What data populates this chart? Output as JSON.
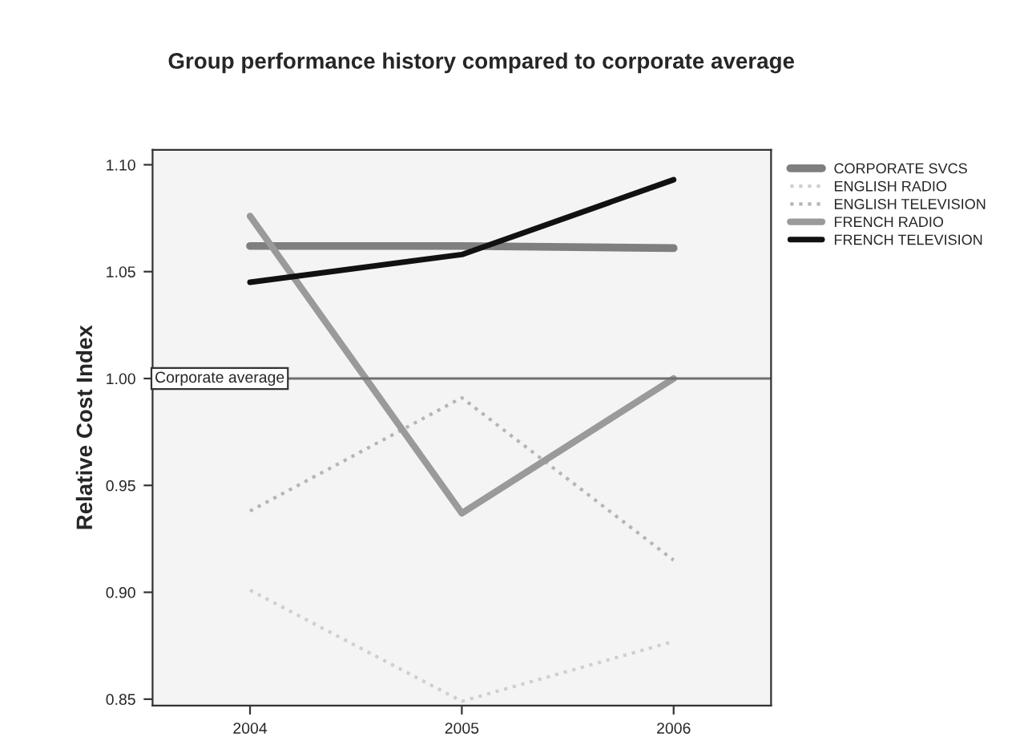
{
  "chart_data": {
    "type": "line",
    "title": "Group performance history compared to corporate average",
    "ylabel": "Relative Cost Index",
    "x": [
      2004,
      2005,
      2006
    ],
    "xlim": [
      2003.54,
      2006.46
    ],
    "xticks": [
      2004,
      2005,
      2006
    ],
    "ylim": [
      0.847,
      1.107
    ],
    "yticks": [
      {
        "value": 0.85,
        "label": "0.85"
      },
      {
        "value": 0.9,
        "label": "0.90"
      },
      {
        "value": 0.95,
        "label": "0.95"
      },
      {
        "value": 1.0,
        "label": "1.00"
      },
      {
        "value": 1.05,
        "label": "1.05"
      },
      {
        "value": 1.1,
        "label": "1.10"
      }
    ],
    "series": [
      {
        "name": "CORPORATE SVCS",
        "color": "#7f7f7f",
        "values": [
          1.062,
          1.062,
          1.061
        ]
      },
      {
        "name": "ENGLISH RADIO",
        "color": "#cfcfcf",
        "line_style": "dotted",
        "values": [
          0.901,
          0.849,
          0.877
        ]
      },
      {
        "name": "ENGLISH TELEVISION",
        "color": "#b5b5b5",
        "line_style": "dotted",
        "values": [
          0.938,
          0.991,
          0.915
        ]
      },
      {
        "name": "FRENCH RADIO",
        "color": "#9a9a9a",
        "values": [
          1.076,
          0.937,
          1.0
        ]
      },
      {
        "name": "FRENCH TELEVISION",
        "color": "#111111",
        "values": [
          1.045,
          1.058,
          1.093
        ]
      }
    ],
    "ref_lines": [
      {
        "axis": "y",
        "value": 1.0,
        "label": "Corporate average",
        "color": "#707070"
      }
    ],
    "grid": false,
    "legend": "right",
    "marker": "none",
    "line_style": "solid"
  }
}
